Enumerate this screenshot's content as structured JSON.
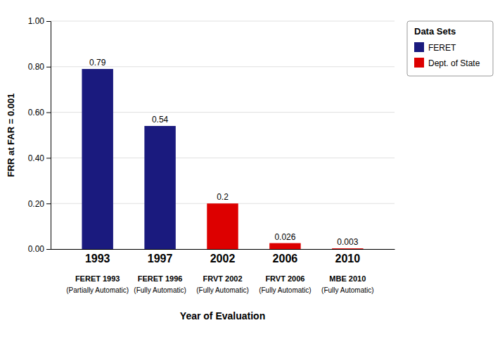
{
  "chart_data": {
    "type": "bar",
    "categories": [
      "1993",
      "1997",
      "2002",
      "2006",
      "2010"
    ],
    "sublabels": [
      "FERET 1993",
      "FERET 1996",
      "FRVT 2002",
      "FRVT 2006",
      "MBE 2010"
    ],
    "sublabel_notes": [
      "(Partially Automatic)",
      "(Fully Automatic)",
      "(Fully Automatic)",
      "(Fully Automatic)",
      "(Fully Automatic)"
    ],
    "values": [
      0.79,
      0.54,
      0.2,
      0.026,
      0.003
    ],
    "colors": [
      "#1a1a7e",
      "#1a1a7e",
      "#dd0000",
      "#dd0000",
      "#dd0000"
    ],
    "data_labels": true,
    "ylabel": "FRR at FAR = 0.001",
    "xlabel": "Year of Evaluation",
    "ylim": [
      0,
      1.0
    ],
    "yticks": [
      {
        "value": 0.0,
        "label": "0.00"
      },
      {
        "value": 0.2,
        "label": "0.20"
      },
      {
        "value": 0.4,
        "label": "0.40"
      },
      {
        "value": 0.6,
        "label": "0.60"
      },
      {
        "value": 0.8,
        "label": "0.80"
      },
      {
        "value": 1.0,
        "label": "1.00"
      }
    ],
    "grid": true,
    "legend": "right",
    "legend_title": "Data Sets",
    "legend_items": [
      {
        "name": "FERET",
        "color": "#1a1a7e"
      },
      {
        "name": "Dept. of State",
        "color": "#dd0000"
      }
    ]
  }
}
